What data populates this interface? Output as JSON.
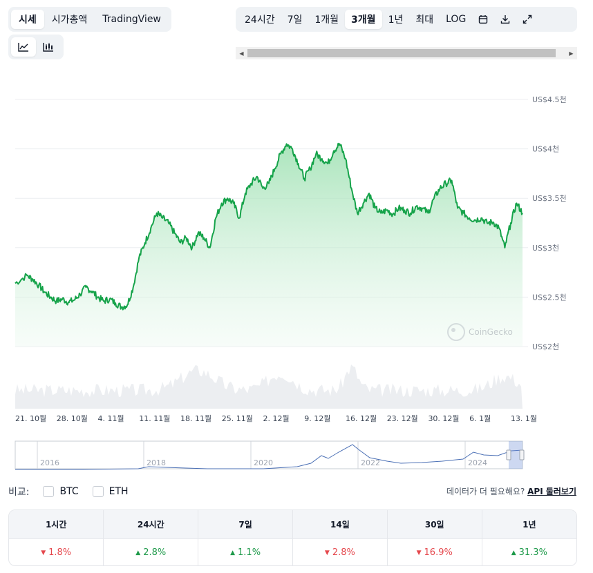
{
  "tabs_left": [
    "시세",
    "시가총액",
    "TradingView"
  ],
  "tabs_left_active": 0,
  "range_tabs": [
    "24시간",
    "7일",
    "1개월",
    "3개월",
    "1년",
    "최대",
    "LOG"
  ],
  "range_active": 3,
  "icons": {
    "line": "line-chart-icon",
    "candle": "candlestick-chart-icon",
    "calendar": "calendar-icon",
    "download": "download-icon",
    "expand": "expand-icon"
  },
  "colors": {
    "line": "#16a34a",
    "fill": "#bfeccd",
    "volume": "#e5e7eb",
    "neg": "#e5484d",
    "pos": "#1e9a4a",
    "navigator": "#4a6fb5"
  },
  "chart_data": {
    "type": "line",
    "y_tick_labels": [
      "US$2천",
      "US$2.5천",
      "US$3천",
      "US$3.5천",
      "US$4천",
      "US$4.5천"
    ],
    "y_ticks": [
      2000,
      2500,
      3000,
      3500,
      4000,
      4500
    ],
    "ylim": [
      2000,
      4500
    ],
    "x_tick_labels": [
      "21. 10월",
      "28. 10월",
      "4. 11월",
      "11. 11월",
      "18. 11월",
      "25. 11월",
      "2. 12월",
      "9. 12월",
      "16. 12월",
      "23. 12월",
      "30. 12월",
      "6. 1월",
      "13. 1월"
    ],
    "x_range_days": [
      0,
      86
    ],
    "series": [
      {
        "values": [
          [
            0,
            2640
          ],
          [
            2,
            2720
          ],
          [
            3,
            2680
          ],
          [
            4,
            2620
          ],
          [
            5,
            2550
          ],
          [
            6,
            2500
          ],
          [
            7,
            2460
          ],
          [
            8,
            2480
          ],
          [
            9,
            2450
          ],
          [
            10,
            2470
          ],
          [
            11,
            2530
          ],
          [
            12,
            2600
          ],
          [
            13,
            2560
          ],
          [
            14,
            2500
          ],
          [
            15,
            2460
          ],
          [
            16,
            2480
          ],
          [
            17,
            2440
          ],
          [
            18,
            2400
          ],
          [
            19,
            2420
          ],
          [
            20,
            2600
          ],
          [
            21,
            2900
          ],
          [
            22,
            3050
          ],
          [
            23,
            3200
          ],
          [
            24,
            3350
          ],
          [
            25,
            3300
          ],
          [
            26,
            3250
          ],
          [
            27,
            3150
          ],
          [
            28,
            3050
          ],
          [
            29,
            3100
          ],
          [
            30,
            3000
          ],
          [
            31,
            3150
          ],
          [
            32,
            3100
          ],
          [
            33,
            3000
          ],
          [
            34,
            3300
          ],
          [
            35,
            3450
          ],
          [
            36,
            3500
          ],
          [
            37,
            3450
          ],
          [
            38,
            3300
          ],
          [
            39,
            3550
          ],
          [
            40,
            3650
          ],
          [
            41,
            3720
          ],
          [
            42,
            3600
          ],
          [
            43,
            3650
          ],
          [
            44,
            3800
          ],
          [
            45,
            3950
          ],
          [
            46,
            4050
          ],
          [
            47,
            4000
          ],
          [
            48,
            3850
          ],
          [
            49,
            3700
          ],
          [
            50,
            3800
          ],
          [
            51,
            3950
          ],
          [
            52,
            3900
          ],
          [
            53,
            3850
          ],
          [
            54,
            3980
          ],
          [
            55,
            4050
          ],
          [
            56,
            3900
          ],
          [
            57,
            3600
          ],
          [
            58,
            3350
          ],
          [
            59,
            3450
          ],
          [
            60,
            3550
          ],
          [
            61,
            3400
          ],
          [
            62,
            3350
          ],
          [
            63,
            3380
          ],
          [
            64,
            3340
          ],
          [
            65,
            3400
          ],
          [
            66,
            3380
          ],
          [
            67,
            3350
          ],
          [
            68,
            3420
          ],
          [
            69,
            3400
          ],
          [
            70,
            3350
          ],
          [
            71,
            3500
          ],
          [
            72,
            3600
          ],
          [
            73,
            3650
          ],
          [
            74,
            3680
          ],
          [
            75,
            3400
          ],
          [
            76,
            3350
          ],
          [
            77,
            3300
          ],
          [
            78,
            3280
          ],
          [
            79,
            3300
          ],
          [
            80,
            3250
          ],
          [
            81,
            3260
          ],
          [
            82,
            3200
          ],
          [
            83,
            3000
          ],
          [
            84,
            3250
          ],
          [
            85,
            3450
          ],
          [
            86,
            3350
          ]
        ]
      }
    ]
  },
  "navigator": {
    "year_labels": [
      "2016",
      "2018",
      "2020",
      "2022",
      "2024"
    ]
  },
  "watermark": "CoinGecko",
  "compare": {
    "label": "비교:",
    "options": [
      "BTC",
      "ETH"
    ]
  },
  "more_data": {
    "text": "데이터가 더 필요해요?",
    "link": "API 둘러보기"
  },
  "performance": [
    {
      "period": "1시간",
      "change": "1.8%",
      "dir": "down"
    },
    {
      "period": "24시간",
      "change": "2.8%",
      "dir": "up"
    },
    {
      "period": "7일",
      "change": "1.1%",
      "dir": "up"
    },
    {
      "period": "14일",
      "change": "2.8%",
      "dir": "down"
    },
    {
      "period": "30일",
      "change": "16.9%",
      "dir": "down"
    },
    {
      "period": "1년",
      "change": "31.3%",
      "dir": "up"
    }
  ]
}
